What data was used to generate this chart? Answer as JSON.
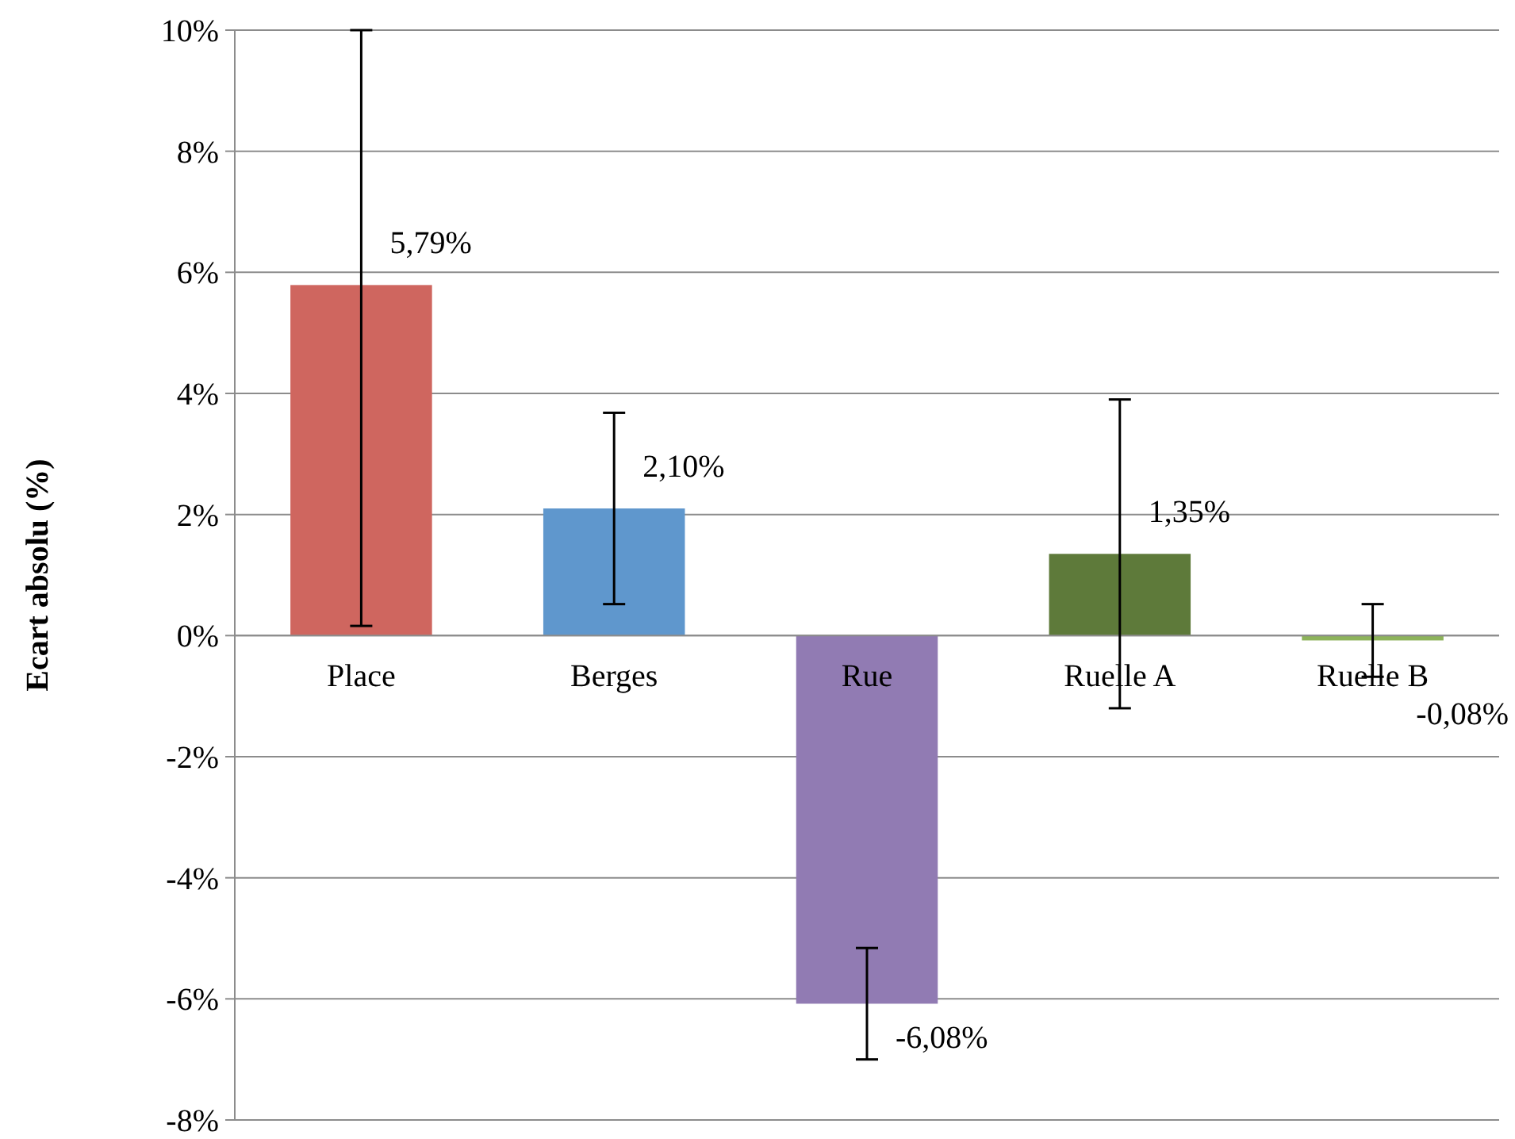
{
  "chart_data": {
    "type": "bar",
    "ylabel": "Ecart absolu (%)",
    "categories": [
      "Place",
      "Berges",
      "Rue",
      "Ruelle A",
      "Ruelle B"
    ],
    "values": [
      5.79,
      2.1,
      -6.08,
      1.35,
      -0.08
    ],
    "colors": [
      "#cf665f",
      "#5f97cd",
      "#917bb3",
      "#5e7a3a",
      "#8db35a"
    ],
    "value_labels": [
      "5,79%",
      "2,10%",
      "-6,08%",
      "1,35%",
      "-0,08%"
    ],
    "errors": [
      [
        0.16,
        10
      ],
      1.58,
      0.92,
      2.55,
      0.6
    ],
    "ylim": [
      -8,
      10
    ],
    "yticks": [
      {
        "value": -8,
        "label": "-8%"
      },
      {
        "value": -6,
        "label": "-6%"
      },
      {
        "value": -4,
        "label": "-4%"
      },
      {
        "value": -2,
        "label": "-2%"
      },
      {
        "value": 0,
        "label": "0%"
      },
      {
        "value": 2,
        "label": "2%"
      },
      {
        "value": 4,
        "label": "4%"
      },
      {
        "value": 6,
        "label": "6%"
      },
      {
        "value": 8,
        "label": "8%"
      },
      {
        "value": 10,
        "label": "10%"
      }
    ],
    "grid": "y"
  }
}
